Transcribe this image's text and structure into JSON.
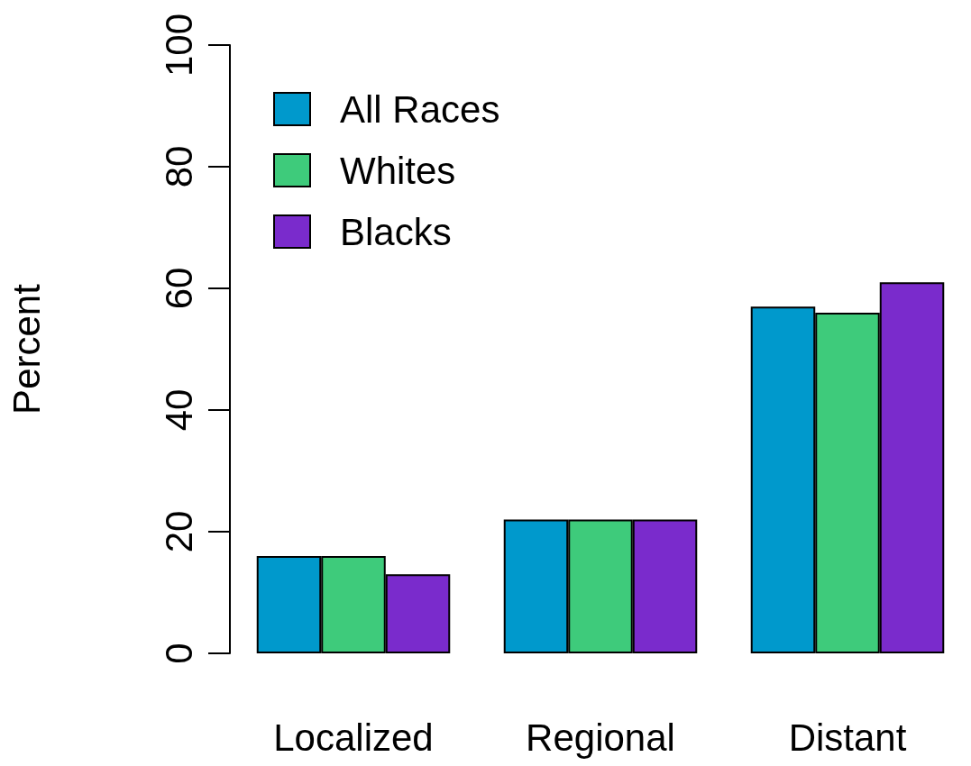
{
  "chart_data": {
    "type": "bar",
    "ylabel": "Percent",
    "categories": [
      "Localized",
      "Regional",
      "Distant"
    ],
    "series": [
      {
        "name": "All Races",
        "color": "#0099cc",
        "values": [
          16,
          22,
          57
        ]
      },
      {
        "name": "Whites",
        "color": "#3ecb7b",
        "values": [
          16,
          22,
          56
        ]
      },
      {
        "name": "Blacks",
        "color": "#7a2bcc",
        "values": [
          13,
          22,
          61
        ]
      }
    ],
    "ylim": [
      0,
      100
    ],
    "yticks": [
      0,
      20,
      40,
      60,
      80,
      100
    ],
    "grid": false,
    "legend": "top left"
  }
}
